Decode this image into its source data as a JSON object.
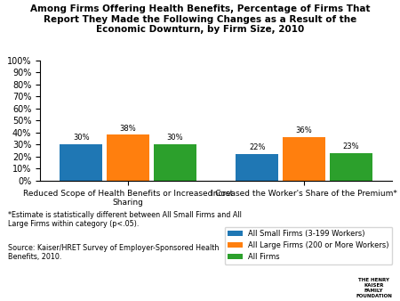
{
  "chart_data": {
    "type": "bar",
    "title": "Among Firms Offering Health Benefits, Percentage of Firms That\nReport They Made the Following Changes as a Result of the\nEconomic Downturn, by Firm Size, 2010",
    "categories": [
      "Reduced Scope of Health Benefits or Increased Cost\nSharing",
      "Increased the Worker's Share of the Premium*"
    ],
    "series": [
      {
        "name": "All Small Firms (3-199 Workers)",
        "values": [
          30,
          22
        ],
        "value_labels": [
          "30%",
          "22%"
        ]
      },
      {
        "name": "All Large Firms (200 or More Workers)",
        "values": [
          38,
          36
        ],
        "value_labels": [
          "38%",
          "36%"
        ]
      },
      {
        "name": "All Firms",
        "values": [
          30,
          23
        ],
        "value_labels": [
          "30%",
          "23%"
        ]
      }
    ],
    "ylim": [
      0,
      100
    ],
    "yticks": [
      {
        "value": 0,
        "label": "0%"
      },
      {
        "value": 10,
        "label": "10%"
      },
      {
        "value": 20,
        "label": "20%"
      },
      {
        "value": 30,
        "label": "30%"
      },
      {
        "value": 40,
        "label": "40%"
      },
      {
        "value": 50,
        "label": "50%"
      },
      {
        "value": 60,
        "label": "60%"
      },
      {
        "value": 70,
        "label": "70%"
      },
      {
        "value": 80,
        "label": "80%"
      },
      {
        "value": 90,
        "label": "90%"
      },
      {
        "value": 100,
        "label": "100%"
      }
    ],
    "grid": false,
    "legend": "lower right",
    "data_labels": true,
    "annotations": [
      "*Estimate is statistically different between All Small Firms and All\nLarge Firms within category (p<.05).",
      "Source: Kaiser/HRET Survey of Employer-Sponsored Health\nBenefits, 2010.",
      "THE HENRY\nKAISER\nFAMILY\nFOUNDATION"
    ]
  }
}
